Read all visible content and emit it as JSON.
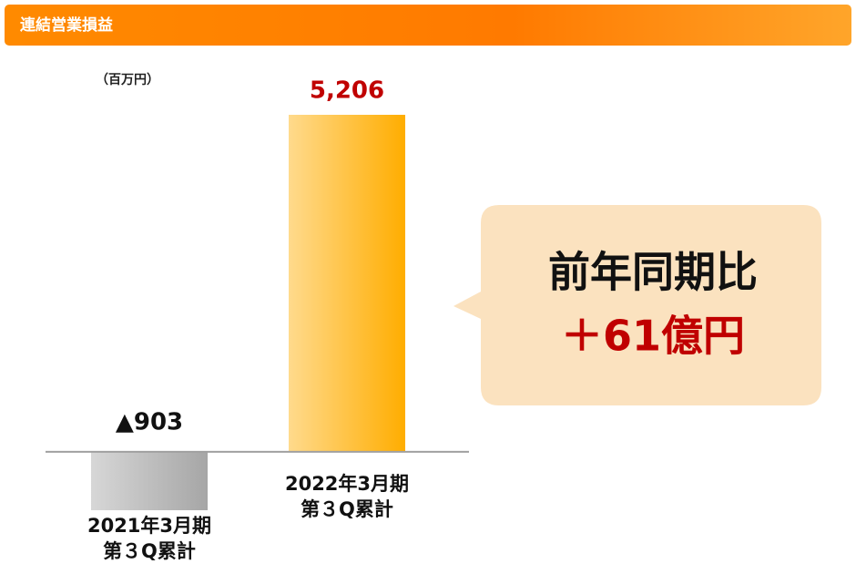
{
  "header": {
    "title": "連結営業損益"
  },
  "chart_data": {
    "type": "bar",
    "unit_label": "（百万円）",
    "categories": [
      [
        "2021年3月期",
        "第３Q累計"
      ],
      [
        "2022年3月期",
        "第３Q累計"
      ]
    ],
    "values": [
      -903,
      5206
    ],
    "value_labels": [
      "▲903",
      "5,206"
    ],
    "colors": [
      "#a6a6a6",
      "#ffad00"
    ],
    "ylim": [
      -903,
      5206
    ]
  },
  "callout": {
    "lines": [
      "前年同期比",
      "＋61億円"
    ]
  }
}
